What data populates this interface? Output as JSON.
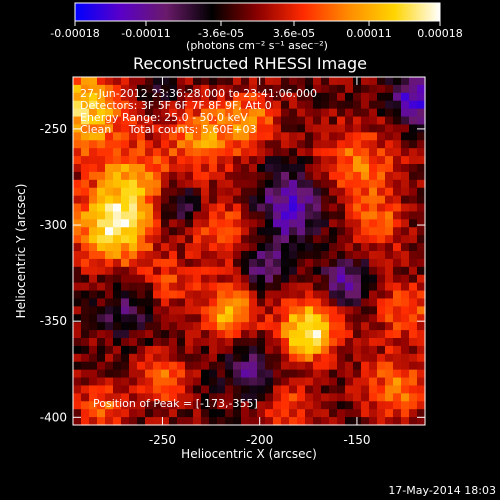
{
  "colorbar": {
    "tick_labels": [
      "-0.00018",
      "-0.00011",
      "-3.6e-05",
      "3.6e-05",
      "0.00011",
      "0.00018"
    ],
    "tick_values": [
      -0.00018,
      -0.00011,
      -3.6e-05,
      3.6e-05,
      0.00011,
      0.00018
    ],
    "range": [
      -0.00018,
      0.00018
    ],
    "units_label": "(photons cm⁻² s⁻¹ asec⁻²)",
    "stops": [
      "#0000ff",
      "#5a00c8",
      "#6a1a6a",
      "#000000",
      "#8b0000",
      "#ff2a00",
      "#ff8c00",
      "#ffd400",
      "#ffffff"
    ]
  },
  "chart_data": {
    "type": "heatmap",
    "title": "Reconstructed RHESSI Image",
    "xlabel": "Heliocentric X (arcsec)",
    "ylabel": "Heliocentric Y (arcsec)",
    "xlim": [
      -296,
      -115
    ],
    "ylim": [
      -404,
      -223
    ],
    "xticks": [
      -250,
      -200,
      -150
    ],
    "yticks": [
      -250,
      -300,
      -350,
      -400
    ],
    "xtick_labels": [
      "-250",
      "-200",
      "-150"
    ],
    "ytick_labels": [
      "-250",
      "-300",
      "-350",
      "-400"
    ],
    "value_range": [
      -0.00018,
      0.00018
    ],
    "peak": {
      "x": -173,
      "y": -355
    },
    "annotations": [
      "27-Jun-2012 23:36:28.000 to 23:41:06.000",
      "Detectors: 3F 5F 6F 7F 8F 9F, Att 0",
      "Energy Range: 25.0 - 50.0 keV",
      "Clean     Total counts: 5.60E+03"
    ],
    "peak_label": "Position of Peak = [-173,-355]",
    "blobs": [
      {
        "x": -275,
        "y": -300,
        "sigma": 14,
        "amp": 1.0
      },
      {
        "x": -290,
        "y": -240,
        "sigma": 16,
        "amp": 0.8
      },
      {
        "x": -265,
        "y": -275,
        "sigma": 12,
        "amp": 0.5
      },
      {
        "x": -230,
        "y": -255,
        "sigma": 13,
        "amp": 0.6
      },
      {
        "x": -205,
        "y": -245,
        "sigma": 10,
        "amp": 0.55
      },
      {
        "x": -215,
        "y": -305,
        "sigma": 13,
        "amp": 0.5
      },
      {
        "x": -175,
        "y": -355,
        "sigma": 11,
        "amp": 1.0
      },
      {
        "x": -215,
        "y": -345,
        "sigma": 10,
        "amp": 0.75
      },
      {
        "x": -150,
        "y": -270,
        "sigma": 15,
        "amp": 0.5
      },
      {
        "x": -140,
        "y": -300,
        "sigma": 10,
        "amp": 0.45
      },
      {
        "x": -125,
        "y": -345,
        "sigma": 11,
        "amp": 0.45
      },
      {
        "x": -130,
        "y": -385,
        "sigma": 12,
        "amp": 0.5
      },
      {
        "x": -250,
        "y": -380,
        "sigma": 9,
        "amp": 0.45
      },
      {
        "x": -280,
        "y": -395,
        "sigma": 10,
        "amp": 0.4
      },
      {
        "x": -245,
        "y": -330,
        "sigma": 9,
        "amp": 0.3
      },
      {
        "x": -185,
        "y": -395,
        "sigma": 10,
        "amp": 0.35
      },
      {
        "x": -185,
        "y": -290,
        "sigma": 13,
        "amp": -0.7
      },
      {
        "x": -200,
        "y": -320,
        "sigma": 10,
        "amp": -0.5
      },
      {
        "x": -205,
        "y": -375,
        "sigma": 10,
        "amp": -0.45
      },
      {
        "x": -240,
        "y": -290,
        "sigma": 8,
        "amp": -0.35
      },
      {
        "x": -155,
        "y": -330,
        "sigma": 9,
        "amp": -0.55
      },
      {
        "x": -120,
        "y": -235,
        "sigma": 9,
        "amp": -0.7
      },
      {
        "x": -270,
        "y": -345,
        "sigma": 9,
        "amp": -0.35
      },
      {
        "x": -255,
        "y": -230,
        "sigma": 8,
        "amp": -0.25
      }
    ]
  },
  "footer": {
    "timestamp": "17-May-2014 18:03"
  }
}
